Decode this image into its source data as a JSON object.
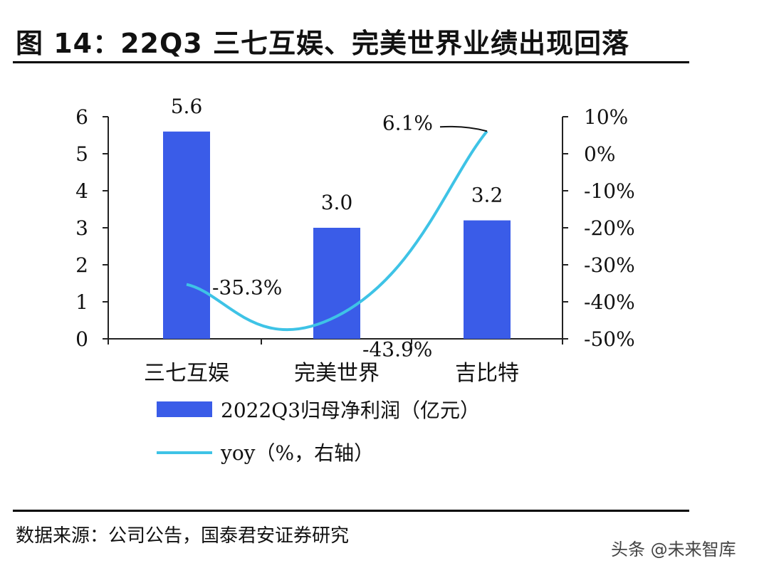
{
  "figure": {
    "title": "图 14：22Q3 三七互娱、完美世界业绩出现回落",
    "source": "数据来源：公司公告，国泰君安证券研究",
    "watermark": "头条 @未来智库"
  },
  "chart_data": {
    "type": "bar",
    "categories": [
      "三七互娱",
      "完美世界",
      "吉比特"
    ],
    "series": [
      {
        "name": "2022Q3归母净利润（亿元）",
        "type": "bar",
        "axis": "left",
        "values": [
          5.6,
          3.0,
          3.2
        ],
        "labels": [
          "5.6",
          "3.0",
          "3.2"
        ],
        "color": "#3a5ce8"
      },
      {
        "name": "yoy（%，右轴）",
        "type": "line",
        "axis": "right",
        "values": [
          -35.3,
          -43.9,
          6.1
        ],
        "labels": [
          "-35.3%",
          "-43.9%",
          "6.1%"
        ],
        "color": "#3ec3e6"
      }
    ],
    "left_axis": {
      "ylim": [
        0,
        6
      ],
      "ticks": [
        "0",
        "1",
        "2",
        "3",
        "4",
        "5",
        "6"
      ]
    },
    "right_axis": {
      "ylim": [
        -50,
        10
      ],
      "ticks": [
        "-50%",
        "-40%",
        "-30%",
        "-20%",
        "-10%",
        "0%",
        "10%"
      ]
    },
    "legend_position": "bottom",
    "grid": false
  }
}
